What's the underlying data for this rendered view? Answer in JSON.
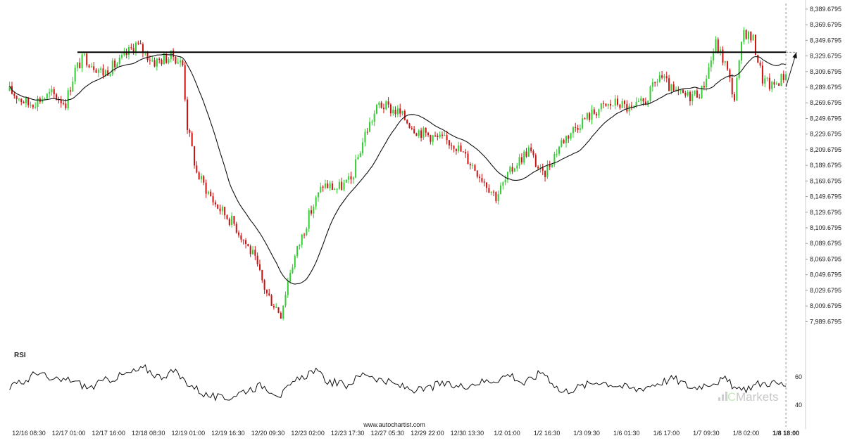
{
  "chart_data": {
    "type": "candlestick",
    "title": "",
    "rsi_label": "RSI",
    "website": "www.autochartist.com",
    "watermark": "Markets",
    "price_ticks": [
      "8,389.6795",
      "8,369.6795",
      "8,349.6795",
      "8,329.6795",
      "8,309.6795",
      "8,289.6795",
      "8,269.6795",
      "8,249.6795",
      "8,229.6795",
      "8,209.6795",
      "8,189.6795",
      "8,169.6795",
      "8,149.6795",
      "8,129.6795",
      "8,109.6795",
      "8,089.6795",
      "8,069.6795",
      "8,049.6795",
      "8,029.6795",
      "8,009.6795",
      "7,989.6795"
    ],
    "price_tick_values": [
      8389.6795,
      8369.6795,
      8349.6795,
      8329.6795,
      8309.6795,
      8289.6795,
      8269.6795,
      8249.6795,
      8229.6795,
      8209.6795,
      8189.6795,
      8169.6795,
      8149.6795,
      8129.6795,
      8109.6795,
      8089.6795,
      8069.6795,
      8049.6795,
      8029.6795,
      8009.6795,
      7989.6795
    ],
    "ylim": [
      7981,
      8395
    ],
    "rsi_ticks": [
      "60",
      "40"
    ],
    "rsi_tick_values": [
      60,
      40
    ],
    "rsi_ylim": [
      32,
      72
    ],
    "time_ticks": [
      "12/16 08:30",
      "12/17 01:00",
      "12/17 16:00",
      "12/18 08:30",
      "12/19 01:00",
      "12/19 16:30",
      "12/20 09:30",
      "12/23 02:00",
      "12/23 17:30",
      "12/27 05:30",
      "12/29 22:00",
      "12/30 13:30",
      "1/2 01:00",
      "1/2 16:30",
      "1/3 09:30",
      "1/6 01:30",
      "1/6 17:00",
      "1/7 09:30",
      "1/8 02:00",
      "1/8 18:00"
    ],
    "current_time_label": "1/8 18:00",
    "total_bars": 340,
    "current_bar": 332,
    "resistance": {
      "level": 8334.5,
      "from_bar": 29,
      "to_bar": 332
    },
    "projection": {
      "from": [
        332,
        8290
      ],
      "to": [
        362,
        8334.5
      ]
    },
    "anchors": [
      [
        0,
        8285
      ],
      [
        8,
        8268
      ],
      [
        18,
        8281
      ],
      [
        24,
        8270
      ],
      [
        28,
        8312
      ],
      [
        32,
        8328
      ],
      [
        40,
        8308
      ],
      [
        47,
        8322
      ],
      [
        54,
        8345
      ],
      [
        62,
        8322
      ],
      [
        70,
        8330
      ],
      [
        74,
        8318
      ],
      [
        76,
        8240
      ],
      [
        80,
        8180
      ],
      [
        88,
        8140
      ],
      [
        96,
        8115
      ],
      [
        104,
        8075
      ],
      [
        110,
        8025
      ],
      [
        116,
        8000
      ],
      [
        120,
        8055
      ],
      [
        128,
        8125
      ],
      [
        134,
        8165
      ],
      [
        140,
        8160
      ],
      [
        146,
        8170
      ],
      [
        152,
        8230
      ],
      [
        158,
        8268
      ],
      [
        166,
        8258
      ],
      [
        174,
        8235
      ],
      [
        182,
        8225
      ],
      [
        190,
        8218
      ],
      [
        198,
        8190
      ],
      [
        208,
        8150
      ],
      [
        216,
        8190
      ],
      [
        222,
        8210
      ],
      [
        228,
        8175
      ],
      [
        236,
        8220
      ],
      [
        244,
        8245
      ],
      [
        252,
        8262
      ],
      [
        260,
        8270
      ],
      [
        266,
        8260
      ],
      [
        272,
        8272
      ],
      [
        278,
        8305
      ],
      [
        284,
        8282
      ],
      [
        290,
        8278
      ],
      [
        296,
        8285
      ],
      [
        302,
        8345
      ],
      [
        306,
        8320
      ],
      [
        310,
        8275
      ],
      [
        314,
        8362
      ],
      [
        318,
        8350
      ],
      [
        322,
        8300
      ],
      [
        326,
        8290
      ],
      [
        332,
        8307
      ]
    ],
    "rsi_anchors": [
      [
        0,
        53
      ],
      [
        6,
        56
      ],
      [
        12,
        64
      ],
      [
        18,
        57
      ],
      [
        26,
        58
      ],
      [
        34,
        52
      ],
      [
        42,
        58
      ],
      [
        50,
        62
      ],
      [
        58,
        66
      ],
      [
        64,
        60
      ],
      [
        70,
        64
      ],
      [
        76,
        56
      ],
      [
        84,
        47
      ],
      [
        92,
        44
      ],
      [
        100,
        50
      ],
      [
        108,
        54
      ],
      [
        116,
        47
      ],
      [
        122,
        56
      ],
      [
        130,
        65
      ],
      [
        136,
        57
      ],
      [
        144,
        54
      ],
      [
        152,
        63
      ],
      [
        160,
        57
      ],
      [
        168,
        53
      ],
      [
        176,
        50
      ],
      [
        184,
        55
      ],
      [
        192,
        53
      ],
      [
        200,
        56
      ],
      [
        208,
        58
      ],
      [
        214,
        62
      ],
      [
        220,
        55
      ],
      [
        228,
        64
      ],
      [
        236,
        49
      ],
      [
        244,
        53
      ],
      [
        252,
        57
      ],
      [
        260,
        54
      ],
      [
        268,
        51
      ],
      [
        276,
        55
      ],
      [
        284,
        59
      ],
      [
        292,
        52
      ],
      [
        300,
        56
      ],
      [
        306,
        58
      ],
      [
        312,
        50
      ],
      [
        320,
        55
      ],
      [
        326,
        56
      ],
      [
        332,
        54
      ]
    ]
  }
}
